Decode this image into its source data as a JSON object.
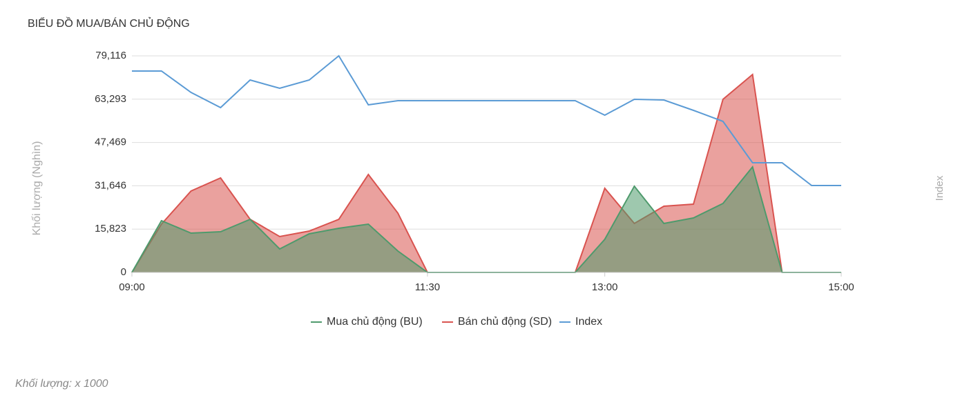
{
  "chart_data": {
    "type": "area",
    "title": "BIỂU ĐỒ MUA/BÁN CHỦ ĐỘNG",
    "y_label": "Khối lượng (Nghìn)",
    "y2_label": "Index",
    "footnote": "Khối lượng: x 1000",
    "categories": [
      "09:00",
      null,
      null,
      null,
      null,
      null,
      null,
      null,
      null,
      null,
      "11:30",
      null,
      null,
      null,
      null,
      null,
      "13:00",
      null,
      null,
      null,
      null,
      null,
      null,
      null,
      "15:00"
    ],
    "ylim": [
      0,
      79116
    ],
    "yticks": [
      0,
      {
        "value": 15823,
        "label": "15,823"
      },
      {
        "value": 31646,
        "label": "31,646"
      },
      {
        "value": 47469,
        "label": "47,469"
      },
      {
        "value": 63293,
        "label": "63,293"
      },
      {
        "value": 79116,
        "label": "79,116"
      }
    ],
    "grid": true,
    "legend": "bottom",
    "series": [
      {
        "name": "Bán chủ động (SD)",
        "color": "#d9534f",
        "values": [
          0,
          17637,
          29731,
          34519,
          19401,
          13102,
          15118,
          19401,
          35778,
          21669,
          0,
          0,
          0,
          0,
          0,
          0,
          30739,
          17889,
          24188,
          24944,
          63242,
          72313,
          0,
          0,
          0
        ]
      },
      {
        "name": "Mua chủ động (BU)",
        "color": "#4e9a6c",
        "values": [
          0,
          18897,
          14362,
          14866,
          19401,
          8567,
          14110,
          16125,
          17637,
          7811,
          0,
          0,
          0,
          0,
          0,
          0,
          12094,
          31495,
          17889,
          19905,
          25196,
          38550,
          0,
          0,
          0
        ]
      },
      {
        "name": "Index",
        "color": "#5b9bd5",
        "type": "line",
        "values": [
          73573,
          73573,
          65762,
          60219,
          70297,
          67273,
          70297,
          79116,
          61226,
          62738,
          62738,
          62738,
          62738,
          62738,
          62738,
          62738,
          57447,
          63242,
          62990,
          59211,
          55179,
          40062,
          40062,
          31747,
          31747
        ]
      }
    ]
  }
}
